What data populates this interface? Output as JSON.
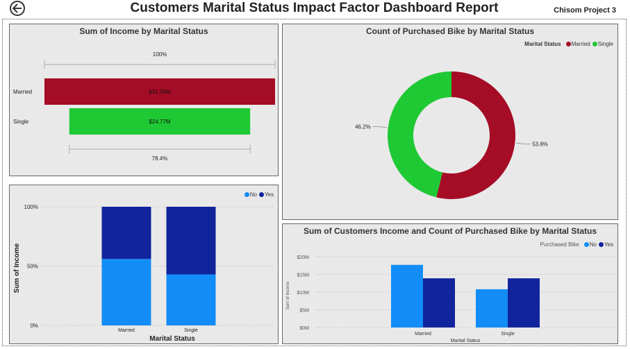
{
  "header": {
    "title": "Customers Marital Status Impact Factor Dashboard Report",
    "project": "Chisom Project 3"
  },
  "colors": {
    "married": "#a50c26",
    "single": "#1fc934",
    "no": "#128df7",
    "yes": "#11249c"
  },
  "chart_data": [
    {
      "id": "funnel",
      "type": "bar",
      "title": "Sum of Income by Marital Status",
      "categories": [
        "Married",
        "Single"
      ],
      "values": [
        31.59,
        24.77
      ],
      "value_labels": [
        "$31.59M",
        "$24.77M"
      ],
      "top_percent_label": "100%",
      "bottom_percent_label": "78.4%",
      "unit": "$M"
    },
    {
      "id": "donut",
      "type": "pie",
      "title": "Count of Purchased Bike by Marital Status",
      "legend_title": "Marital Status",
      "categories": [
        "Married",
        "Single"
      ],
      "values": [
        53.8,
        46.2
      ],
      "value_labels": [
        "53.8%",
        "46.2%"
      ],
      "legend_position": "top-right"
    },
    {
      "id": "stacked",
      "type": "bar",
      "stacked": true,
      "title": "",
      "xlabel": "Marital Status",
      "ylabel": "Sum of Income",
      "categories": [
        "Married",
        "Single"
      ],
      "series": [
        {
          "name": "No",
          "values": [
            56,
            43
          ]
        },
        {
          "name": "Yes",
          "values": [
            44,
            57
          ]
        }
      ],
      "yticks": [
        "0%",
        "50%",
        "100%"
      ],
      "ylim": [
        0,
        100
      ],
      "legend_position": "top-right"
    },
    {
      "id": "clustered",
      "type": "bar",
      "title": "Sum of Customers Income and Count of Purchased Bike by Marital Status",
      "legend_title": "Purchased Bike",
      "xlabel": "Marital Status",
      "ylabel": "Sum of Income",
      "categories": [
        "Married",
        "Single"
      ],
      "series": [
        {
          "name": "No",
          "values": [
            17.7,
            10.8
          ]
        },
        {
          "name": "Yes",
          "values": [
            13.9,
            13.9
          ]
        }
      ],
      "yticks": [
        "$0M",
        "$5M",
        "$10M",
        "$15M",
        "$20M"
      ],
      "ylim": [
        0,
        20
      ],
      "legend_position": "top-right"
    }
  ]
}
